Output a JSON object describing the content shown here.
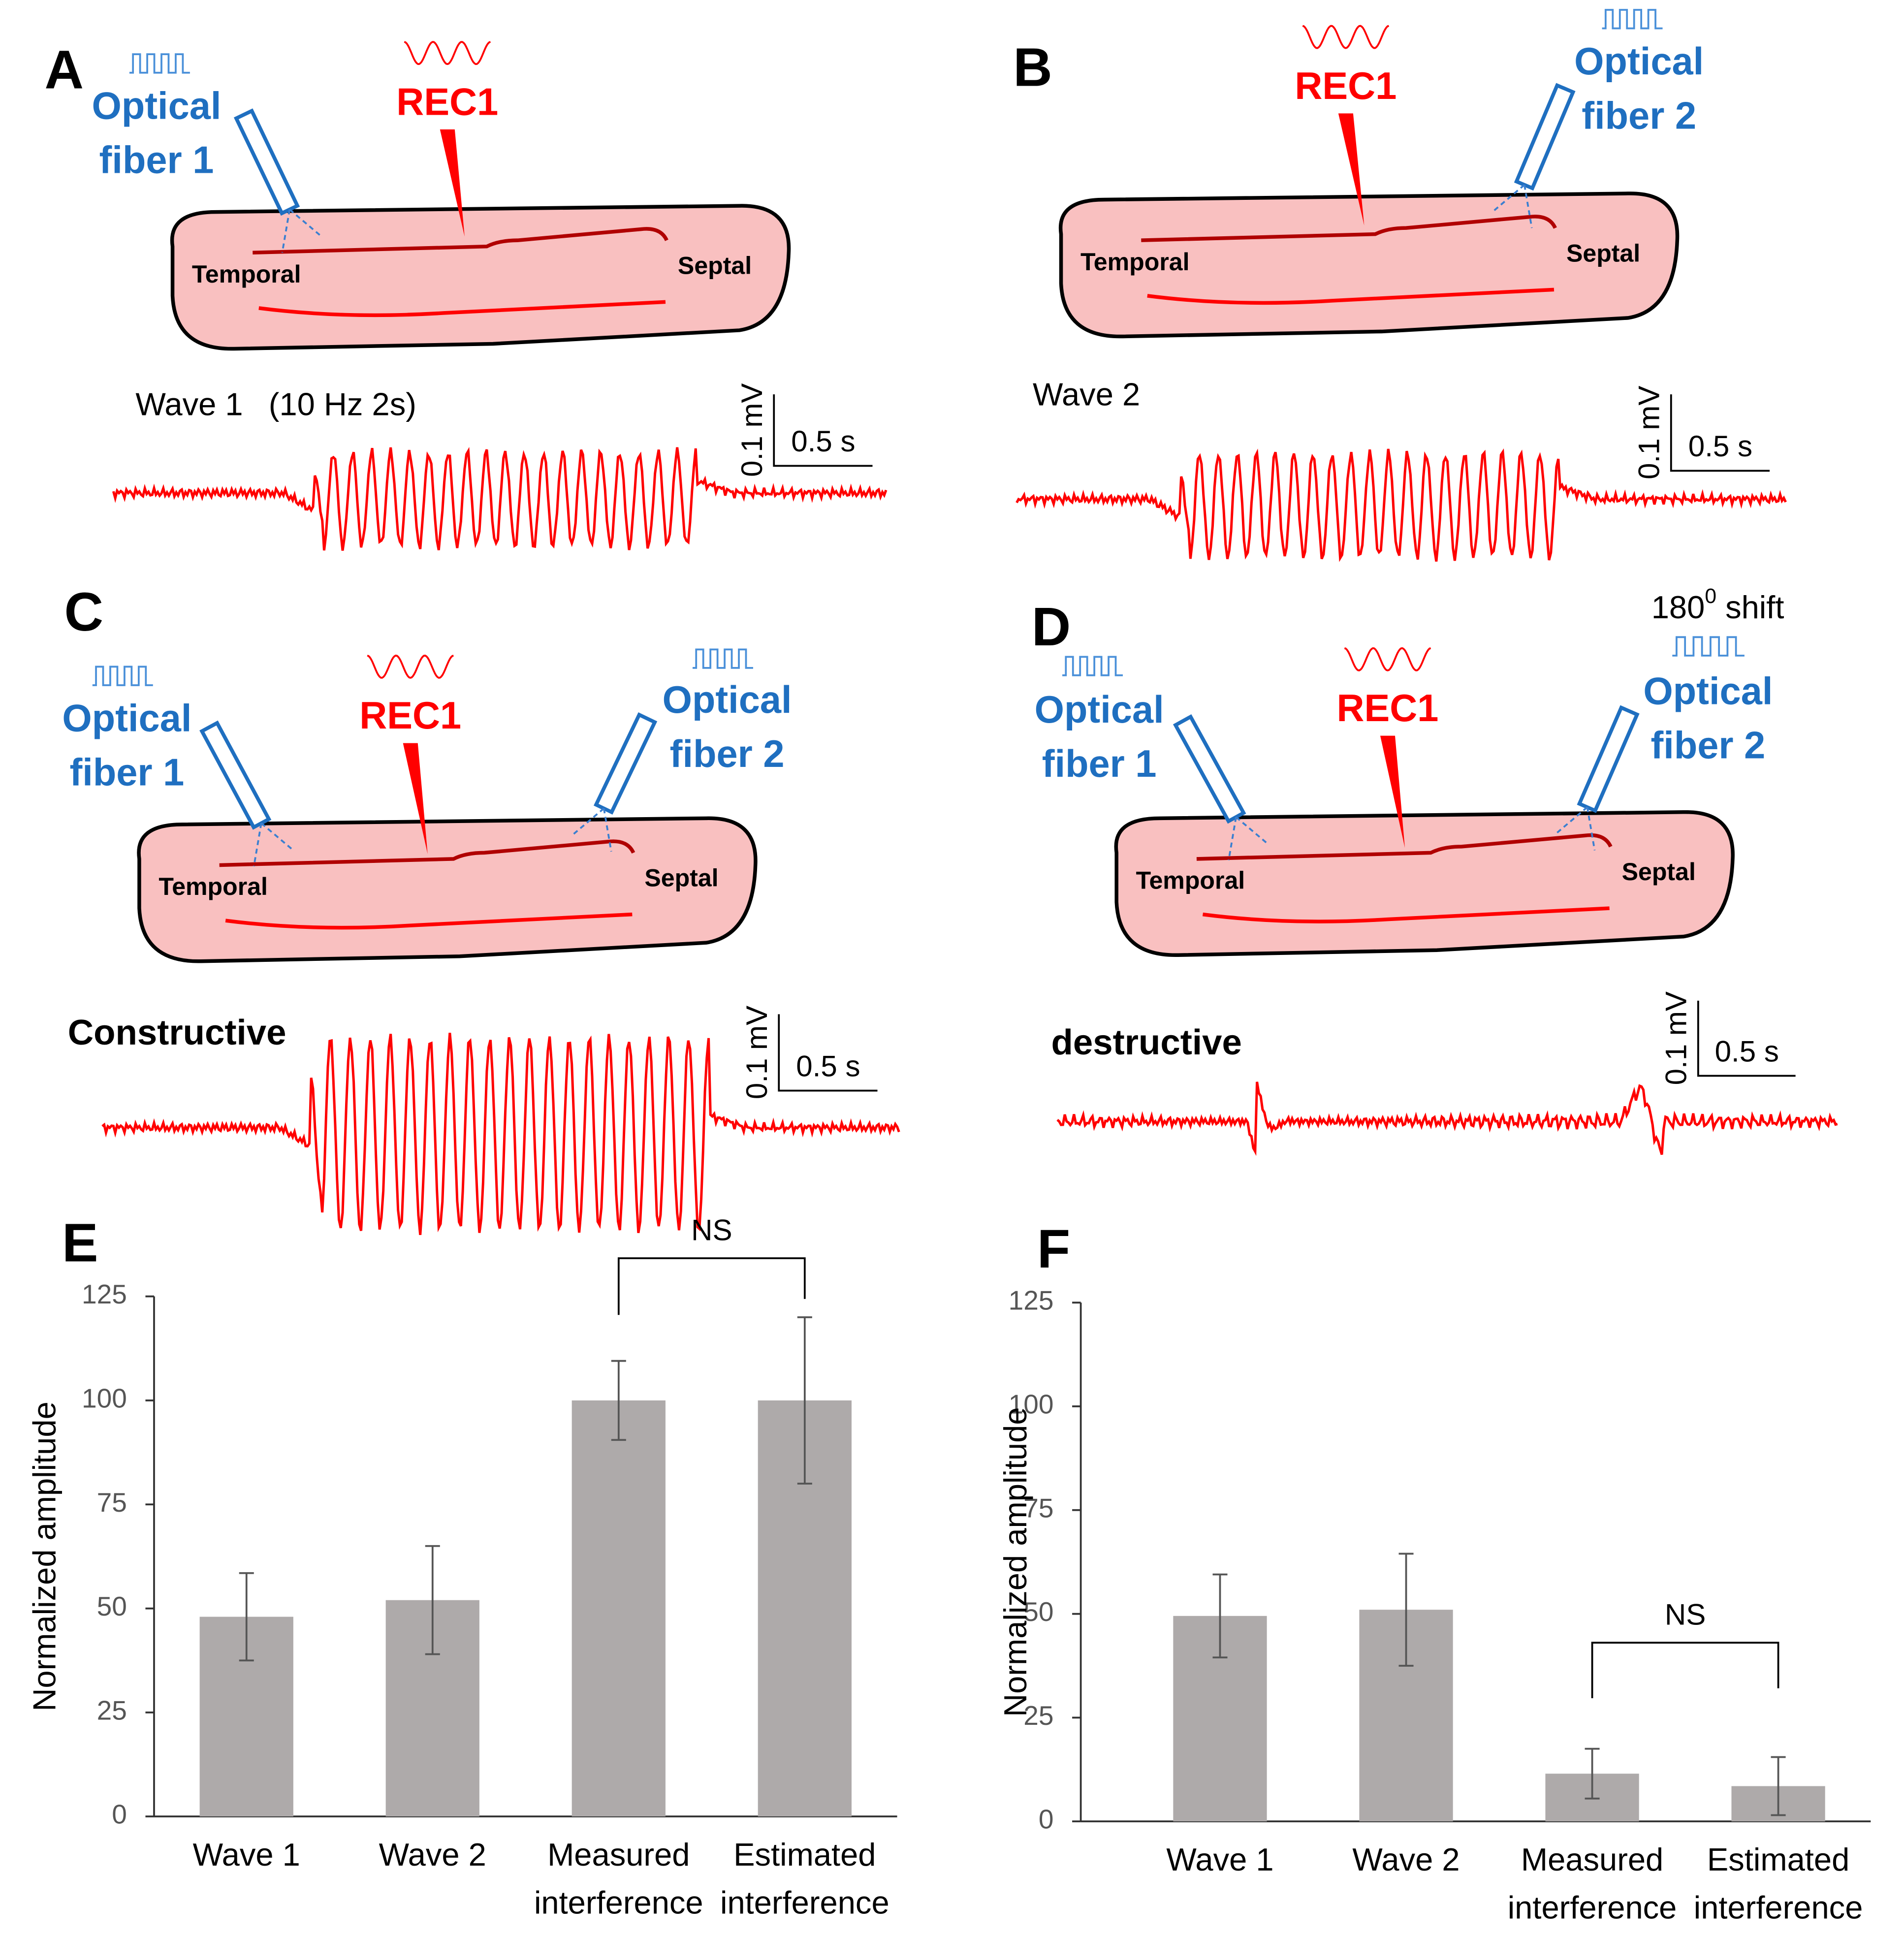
{
  "panels": [
    {
      "letter": "A",
      "fibers": [
        "Optical\nfiber 1"
      ],
      "rec": "REC1",
      "temporal": "Temporal",
      "septal": "Septal",
      "trace_label": "Wave 1",
      "trace_note": "(10 Hz 2s)",
      "scale_v": "0.1 mV",
      "scale_t": "0.5 s"
    },
    {
      "letter": "B",
      "fibers": [
        "Optical\nfiber 2"
      ],
      "rec": "REC1",
      "temporal": "Temporal",
      "septal": "Septal",
      "trace_label": "Wave 2",
      "scale_v": "0.1 mV",
      "scale_t": "0.5 s"
    },
    {
      "letter": "C",
      "fibers": [
        "Optical\nfiber 1",
        "Optical\nfiber 2"
      ],
      "rec": "REC1",
      "temporal": "Temporal",
      "septal": "Septal",
      "trace_label": "Constructive",
      "scale_v": "0.1 mV",
      "scale_t": "0.5 s"
    },
    {
      "letter": "D",
      "fibers": [
        "Optical\nfiber 1",
        "Optical\nfiber 2"
      ],
      "rec": "REC1",
      "temporal": "Temporal",
      "septal": "Septal",
      "trace_label": "destructive",
      "scale_v": "0.1 mV",
      "scale_t": "0.5 s",
      "shift": {
        "number": "180",
        "superscript": "0",
        "text": " shift"
      }
    }
  ],
  "chart_data": [
    {
      "type": "bar",
      "panel": "E",
      "ylabel": "Normalized amplitude",
      "categories": [
        "Wave 1",
        "Wave 2",
        "Measured\ninterference",
        "Estimated\ninterference"
      ],
      "values": [
        48,
        52,
        100,
        100
      ],
      "errors": [
        10.5,
        13,
        9.5,
        20
      ],
      "color": "#aeaaaa",
      "ylim": [
        0,
        125
      ],
      "yticks": [
        0,
        25,
        50,
        75,
        100,
        125
      ],
      "annotation": "NS"
    },
    {
      "type": "bar",
      "panel": "F",
      "ylabel": "Normalized amplitude",
      "categories": [
        "Wave 1",
        "Wave 2",
        "Measured\ninterference",
        "Estimated\ninterference"
      ],
      "values": [
        49.5,
        51,
        11.5,
        8.5
      ],
      "errors": [
        10,
        13.5,
        6,
        7
      ],
      "color": "#aeaaaa",
      "ylim": [
        0,
        125
      ],
      "yticks": [
        0,
        25,
        50,
        75,
        100,
        125
      ],
      "annotation": "NS"
    }
  ]
}
